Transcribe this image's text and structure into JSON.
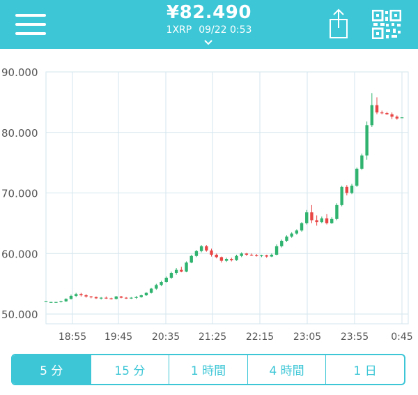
{
  "header": {
    "price": "¥82.490",
    "unit": "1XRP",
    "datetime": "09/22 0:53",
    "icons": [
      "menu-icon",
      "chevron-down-icon",
      "share-icon",
      "qr-code-icon"
    ],
    "accent_color": "#3cc6d6"
  },
  "chart_data": {
    "type": "candlestick",
    "y_ticks": [
      "90.000",
      "80.000",
      "70.000",
      "60.000",
      "50.000"
    ],
    "ylim": [
      50,
      90
    ],
    "x_ticks": [
      "18:55",
      "19:45",
      "20:35",
      "21:25",
      "22:15",
      "23:05",
      "23:55",
      "0:45"
    ],
    "up_color": "#2fb36e",
    "down_color": "#e84545",
    "grid": true,
    "candles": [
      [
        52.1,
        52.1,
        52.0,
        52.1
      ],
      [
        52.0,
        52.0,
        51.9,
        52.0
      ],
      [
        52.0,
        52.0,
        52.0,
        52.0
      ],
      [
        52.0,
        52.2,
        51.9,
        52.1
      ],
      [
        52.1,
        52.6,
        52.0,
        52.5
      ],
      [
        52.5,
        53.2,
        52.4,
        53.0
      ],
      [
        53.0,
        53.5,
        52.8,
        53.3
      ],
      [
        53.3,
        53.5,
        52.9,
        53.1
      ],
      [
        53.1,
        53.3,
        52.7,
        52.9
      ],
      [
        52.9,
        53.0,
        52.6,
        52.8
      ],
      [
        52.8,
        52.9,
        52.5,
        52.6
      ],
      [
        52.6,
        52.8,
        52.4,
        52.7
      ],
      [
        52.7,
        52.9,
        52.5,
        52.6
      ],
      [
        52.6,
        52.7,
        52.4,
        52.5
      ],
      [
        52.5,
        53.0,
        52.4,
        52.9
      ],
      [
        52.9,
        53.0,
        52.6,
        52.7
      ],
      [
        52.7,
        52.8,
        52.5,
        52.6
      ],
      [
        52.6,
        52.8,
        52.5,
        52.7
      ],
      [
        52.7,
        53.0,
        52.5,
        52.8
      ],
      [
        52.8,
        53.2,
        52.7,
        53.1
      ],
      [
        53.1,
        53.6,
        53.0,
        53.5
      ],
      [
        53.5,
        54.3,
        53.4,
        54.2
      ],
      [
        54.2,
        55.0,
        54.0,
        54.8
      ],
      [
        54.8,
        55.5,
        54.6,
        55.3
      ],
      [
        55.3,
        56.2,
        55.2,
        56.0
      ],
      [
        56.0,
        57.0,
        55.8,
        56.8
      ],
      [
        56.8,
        57.6,
        56.5,
        57.3
      ],
      [
        57.3,
        57.8,
        56.9,
        57.0
      ],
      [
        57.0,
        58.7,
        56.9,
        58.5
      ],
      [
        58.5,
        59.8,
        58.4,
        59.6
      ],
      [
        59.6,
        60.6,
        59.4,
        60.4
      ],
      [
        60.4,
        61.4,
        60.2,
        61.2
      ],
      [
        61.2,
        61.4,
        60.3,
        60.5
      ],
      [
        60.5,
        60.8,
        59.5,
        59.8
      ],
      [
        59.8,
        60.0,
        59.2,
        59.4
      ],
      [
        59.4,
        59.5,
        58.5,
        58.8
      ],
      [
        58.8,
        59.3,
        58.6,
        59.1
      ],
      [
        59.1,
        59.3,
        58.7,
        58.9
      ],
      [
        58.9,
        59.8,
        58.8,
        59.6
      ],
      [
        59.6,
        60.2,
        59.4,
        60.0
      ],
      [
        60.0,
        60.1,
        59.6,
        59.8
      ],
      [
        59.8,
        60.0,
        59.6,
        59.7
      ],
      [
        59.7,
        59.9,
        59.5,
        59.6
      ],
      [
        59.6,
        59.8,
        59.4,
        59.7
      ],
      [
        59.7,
        59.8,
        59.3,
        59.5
      ],
      [
        59.5,
        60.0,
        59.4,
        59.8
      ],
      [
        59.8,
        61.5,
        59.7,
        61.2
      ],
      [
        61.2,
        62.3,
        61.0,
        62.1
      ],
      [
        62.1,
        63.0,
        61.9,
        62.8
      ],
      [
        62.8,
        63.5,
        62.6,
        63.3
      ],
      [
        63.3,
        64.0,
        63.1,
        63.8
      ],
      [
        63.8,
        65.2,
        63.6,
        65.0
      ],
      [
        65.0,
        67.2,
        64.8,
        66.8
      ],
      [
        66.8,
        68.0,
        65.0,
        65.5
      ],
      [
        65.5,
        66.3,
        64.6,
        65.2
      ],
      [
        65.2,
        66.1,
        65.0,
        65.8
      ],
      [
        65.8,
        66.5,
        64.8,
        65.0
      ],
      [
        65.0,
        66.0,
        64.9,
        65.7
      ],
      [
        65.7,
        68.3,
        65.5,
        68.0
      ],
      [
        68.0,
        71.2,
        67.8,
        71.0
      ],
      [
        71.0,
        71.3,
        69.6,
        70.0
      ],
      [
        70.0,
        71.5,
        69.8,
        71.2
      ],
      [
        71.2,
        74.2,
        71.0,
        74.0
      ],
      [
        74.0,
        76.5,
        73.8,
        76.2
      ],
      [
        76.2,
        81.8,
        75.5,
        81.2
      ],
      [
        81.2,
        86.5,
        80.9,
        84.5
      ],
      [
        84.5,
        85.8,
        83.0,
        83.3
      ],
      [
        83.3,
        83.6,
        83.0,
        83.2
      ],
      [
        83.2,
        83.4,
        82.9,
        83.0
      ],
      [
        83.0,
        83.3,
        82.2,
        82.6
      ],
      [
        82.6,
        82.8,
        82.1,
        82.3
      ],
      [
        82.49,
        82.49,
        82.49,
        82.49
      ]
    ],
    "x_range": [
      0,
      71
    ],
    "tick_index": [
      2,
      12,
      22,
      32,
      42,
      52,
      62,
      72
    ]
  },
  "timeframes": {
    "tabs": [
      "5 分",
      "15 分",
      "1 時間",
      "4 時間",
      "1 日"
    ],
    "selected": "5 分"
  }
}
